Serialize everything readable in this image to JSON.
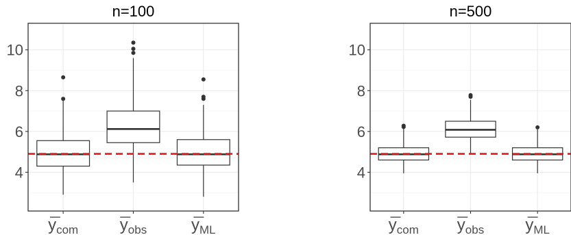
{
  "chart_data": [
    {
      "type": "boxplot",
      "title": "n=100",
      "xlabel": "",
      "ylabel": "",
      "ylim": [
        2.1,
        11.3
      ],
      "yticks": [
        4,
        6,
        8,
        10
      ],
      "grid": true,
      "reference_line": {
        "y": 4.9,
        "style": "dashed",
        "color": "#e31a1c"
      },
      "categories": [
        {
          "base": "y",
          "sub": "com"
        },
        {
          "base": "y",
          "sub": "obs"
        },
        {
          "base": "y",
          "sub": "ML"
        }
      ],
      "boxes": [
        {
          "whisker_low": 2.9,
          "q1": 4.3,
          "median": 4.88,
          "q3": 5.55,
          "whisker_high": 7.5,
          "outliers": [
            7.6,
            8.65
          ]
        },
        {
          "whisker_low": 3.5,
          "q1": 5.45,
          "median": 6.12,
          "q3": 7.0,
          "whisker_high": 9.6,
          "outliers": [
            9.85,
            10.05,
            10.35
          ]
        },
        {
          "whisker_low": 2.8,
          "q1": 4.35,
          "median": 4.88,
          "q3": 5.6,
          "whisker_high": 7.3,
          "outliers": [
            7.6,
            7.7,
            8.55
          ]
        }
      ]
    },
    {
      "type": "boxplot",
      "title": "n=500",
      "xlabel": "",
      "ylabel": "",
      "ylim": [
        2.1,
        11.3
      ],
      "yticks": [
        4,
        6,
        8,
        10
      ],
      "grid": true,
      "reference_line": {
        "y": 4.9,
        "style": "dashed",
        "color": "#e31a1c"
      },
      "categories": [
        {
          "base": "y",
          "sub": "com"
        },
        {
          "base": "y",
          "sub": "obs"
        },
        {
          "base": "y",
          "sub": "ML"
        }
      ],
      "boxes": [
        {
          "whisker_low": 3.95,
          "q1": 4.6,
          "median": 4.88,
          "q3": 5.2,
          "whisker_high": 6.15,
          "outliers": [
            6.22,
            6.28
          ]
        },
        {
          "whisker_low": 4.9,
          "q1": 5.72,
          "median": 6.08,
          "q3": 6.5,
          "whisker_high": 7.55,
          "outliers": [
            7.7,
            7.78
          ]
        },
        {
          "whisker_low": 3.95,
          "q1": 4.6,
          "median": 4.88,
          "q3": 5.2,
          "whisker_high": 6.1,
          "outliers": [
            6.2
          ]
        }
      ]
    }
  ],
  "colors": {
    "box_fill": "#ffffff",
    "box_stroke": "#333333",
    "outlier": "#333333",
    "reference_line": "#e31a1c",
    "panel_border": "#333333",
    "grid_major": "#ebebeb",
    "grid_minor": "#f5f5f5",
    "tick_label": "#4d4d4d"
  }
}
